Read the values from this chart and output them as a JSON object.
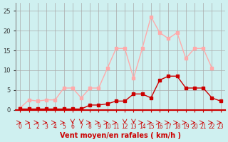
{
  "x": [
    0,
    1,
    2,
    3,
    4,
    5,
    6,
    7,
    8,
    9,
    10,
    11,
    12,
    13,
    14,
    15,
    16,
    17,
    18,
    19,
    20,
    21,
    22,
    23
  ],
  "rafales": [
    0.5,
    2.5,
    2.2,
    2.5,
    2.5,
    5.5,
    5.5,
    3.0,
    5.5,
    5.5,
    10.5,
    15.5,
    15.5,
    8.0,
    15.5,
    23.5,
    19.5,
    18.0,
    19.5,
    13.0,
    15.5,
    15.5,
    10.5,
    null
  ],
  "vent_moyen": [
    0.2,
    0.2,
    0.2,
    0.2,
    0.2,
    0.2,
    0.2,
    0.2,
    1.2,
    1.2,
    1.5,
    2.2,
    2.2,
    4.0,
    4.0,
    3.0,
    7.5,
    8.5,
    8.5,
    5.5,
    5.5,
    5.5,
    3.0,
    2.2
  ],
  "xlabel": "Vent moyen/en rafales ( km/h )",
  "ylim": [
    0,
    27
  ],
  "xlim_min": -0.5,
  "xlim_max": 23.5,
  "yticks": [
    0,
    5,
    10,
    15,
    20,
    25
  ],
  "xticks": [
    0,
    1,
    2,
    3,
    4,
    5,
    6,
    7,
    8,
    9,
    10,
    11,
    12,
    13,
    14,
    15,
    16,
    17,
    18,
    19,
    20,
    21,
    22,
    23
  ],
  "bg_color": "#cff0f0",
  "grid_color": "#aaaaaa",
  "rafales_color": "#ffaaaa",
  "vent_moyen_color": "#cc0000",
  "arrow_color": "#cc0000",
  "xlabel_color": "#cc0000",
  "down_indices": [
    6,
    7,
    12,
    13
  ]
}
